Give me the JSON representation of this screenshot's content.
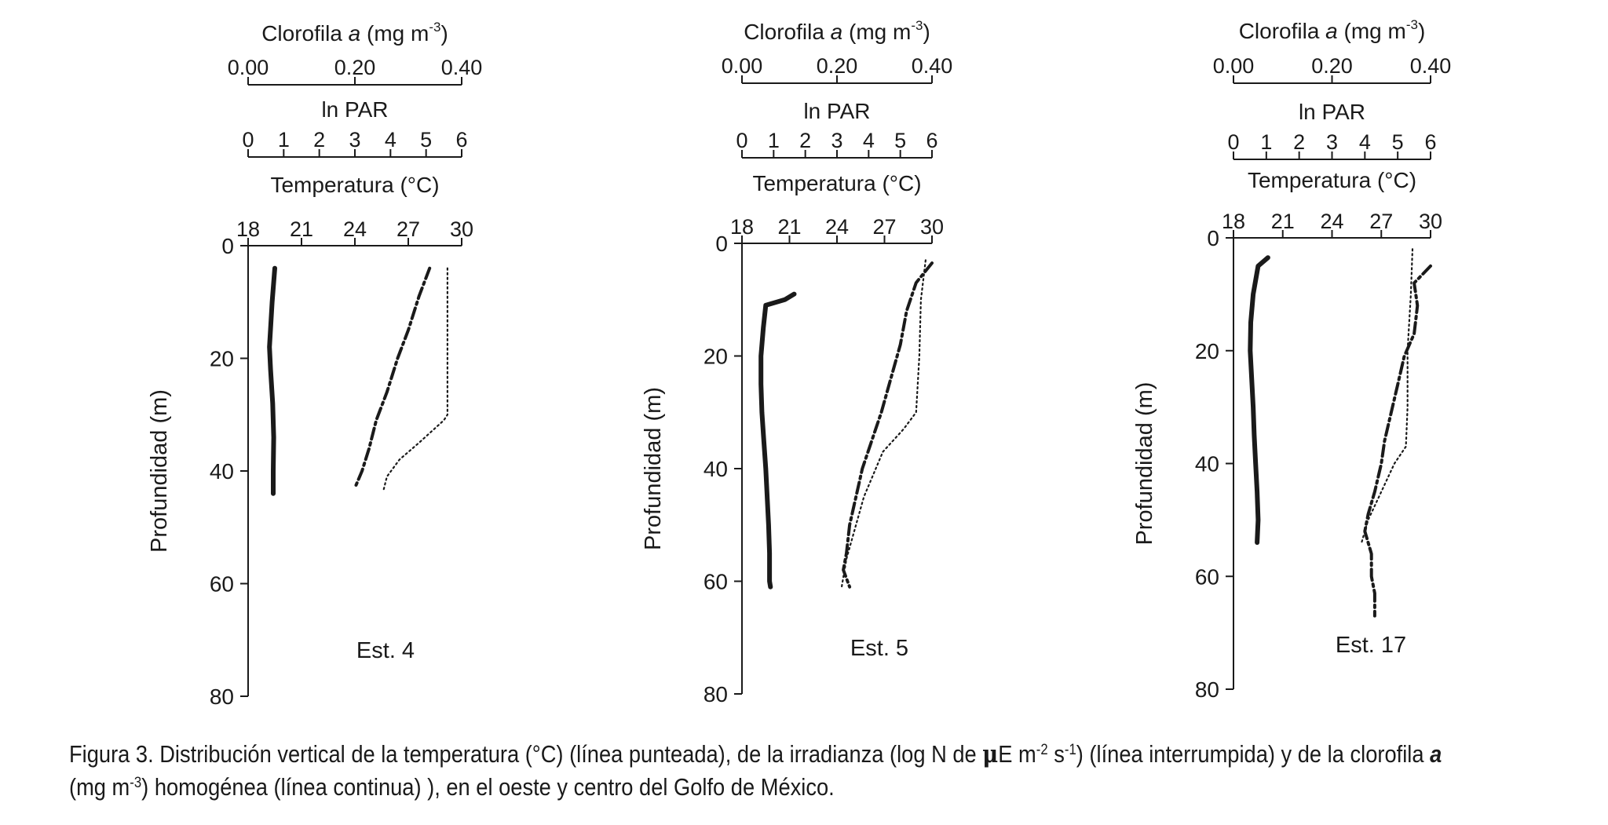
{
  "chart_data": [
    {
      "type": "line",
      "station_label": "Est. 4",
      "ylabel": "Profundidad (m)",
      "y_reversed": true,
      "ylim": [
        0,
        80
      ],
      "yticks": [
        "0",
        "20",
        "40",
        "60",
        "80"
      ],
      "axes": {
        "chl": {
          "label_main": "Clorofila ",
          "label_italic": "a",
          "label_unit": " (mg m",
          "label_exp": "-3",
          "label_close": ")",
          "range": [
            0,
            0.4
          ],
          "ticks": [
            "0.00",
            "0.20",
            "0.40"
          ]
        },
        "par": {
          "label": "ln  PAR",
          "range": [
            0,
            6
          ],
          "ticks": [
            "0",
            "1",
            "2",
            "3",
            "4",
            "5",
            "6"
          ]
        },
        "temp": {
          "label": "Temperatura  (°C)",
          "range": [
            18,
            30
          ],
          "ticks": [
            "18",
            "21",
            "24",
            "27",
            "30"
          ]
        }
      },
      "series": [
        {
          "style": "dotted",
          "x_axis": "temp",
          "points": [
            [
              29.2,
              4
            ],
            [
              29.2,
              30
            ],
            [
              29.0,
              31
            ],
            [
              27.6,
              35
            ],
            [
              26.5,
              38
            ],
            [
              25.8,
              41
            ],
            [
              25.6,
              43.5
            ]
          ]
        },
        {
          "style": "dashed",
          "x_axis": "par",
          "points": [
            [
              5.1,
              4
            ],
            [
              4.8,
              9
            ],
            [
              4.5,
              15
            ],
            [
              4.2,
              20
            ],
            [
              3.9,
              26
            ],
            [
              3.6,
              31
            ],
            [
              3.4,
              36
            ],
            [
              3.2,
              40
            ],
            [
              3.0,
              43
            ]
          ]
        },
        {
          "style": "solid",
          "x_axis": "chl",
          "points": [
            [
              0.05,
              4
            ],
            [
              0.045,
              10
            ],
            [
              0.04,
              18
            ],
            [
              0.042,
              22
            ],
            [
              0.046,
              28
            ],
            [
              0.048,
              34
            ],
            [
              0.047,
              40
            ],
            [
              0.047,
              44
            ]
          ]
        }
      ]
    },
    {
      "type": "line",
      "station_label": "Est. 5",
      "ylabel": "Profundidad (m)",
      "y_reversed": true,
      "ylim": [
        0,
        80
      ],
      "yticks": [
        "0",
        "20",
        "40",
        "60",
        "80"
      ],
      "axes": {
        "chl": {
          "label_main": "Clorofila ",
          "label_italic": "a",
          "label_unit": " (mg m",
          "label_exp": "-3",
          "label_close": ")",
          "range": [
            0,
            0.4
          ],
          "ticks": [
            "0.00",
            "0.20",
            "0.40"
          ]
        },
        "par": {
          "label": "ln  PAR",
          "range": [
            0,
            6
          ],
          "ticks": [
            "0",
            "1",
            "2",
            "3",
            "4",
            "5",
            "6"
          ]
        },
        "temp": {
          "label": "Temperatura  (°C)",
          "range": [
            18,
            30
          ],
          "ticks": [
            "18",
            "21",
            "24",
            "27",
            "30"
          ]
        }
      },
      "series": [
        {
          "style": "dotted",
          "x_axis": "temp",
          "points": [
            [
              29.6,
              3
            ],
            [
              29.3,
              10
            ],
            [
              29.2,
              20
            ],
            [
              29.0,
              30
            ],
            [
              28.2,
              33
            ],
            [
              26.9,
              37
            ],
            [
              25.7,
              45
            ],
            [
              25.2,
              50
            ],
            [
              24.6,
              56
            ],
            [
              24.3,
              61
            ]
          ]
        },
        {
          "style": "dashed",
          "x_axis": "par",
          "points": [
            [
              6.0,
              3.5
            ],
            [
              5.5,
              7
            ],
            [
              5.2,
              12
            ],
            [
              5.0,
              18
            ],
            [
              4.7,
              24
            ],
            [
              4.4,
              30
            ],
            [
              4.1,
              35
            ],
            [
              3.8,
              40
            ],
            [
              3.6,
              45
            ],
            [
              3.4,
              50
            ],
            [
              3.3,
              55
            ],
            [
              3.2,
              58
            ],
            [
              3.4,
              61
            ]
          ]
        },
        {
          "style": "solid",
          "x_axis": "chl",
          "points": [
            [
              0.11,
              9
            ],
            [
              0.09,
              10
            ],
            [
              0.05,
              11
            ],
            [
              0.045,
              15
            ],
            [
              0.04,
              20
            ],
            [
              0.04,
              25
            ],
            [
              0.042,
              30
            ],
            [
              0.046,
              35
            ],
            [
              0.05,
              40
            ],
            [
              0.053,
              45
            ],
            [
              0.056,
              50
            ],
            [
              0.058,
              55
            ],
            [
              0.058,
              60
            ],
            [
              0.06,
              61
            ]
          ]
        }
      ]
    },
    {
      "type": "line",
      "station_label": "Est. 17",
      "ylabel": "Profundidad (m)",
      "y_reversed": true,
      "ylim": [
        0,
        80
      ],
      "yticks": [
        "0",
        "20",
        "40",
        "60",
        "80"
      ],
      "axes": {
        "chl": {
          "label_main": "Clorofila ",
          "label_italic": "a",
          "label_unit": " (mg m",
          "label_exp": "-3",
          "label_close": ")",
          "range": [
            0,
            0.4
          ],
          "ticks": [
            "0.00",
            "0.20",
            "0.40"
          ]
        },
        "par": {
          "label": "ln PAR",
          "range": [
            0,
            6
          ],
          "ticks": [
            "0",
            "1",
            "2",
            "3",
            "4",
            "5",
            "6"
          ]
        },
        "temp": {
          "label": "Temperatura     (°C)",
          "range": [
            18,
            30
          ],
          "ticks": [
            "18",
            "21",
            "24",
            "27",
            "30"
          ]
        }
      },
      "series": [
        {
          "style": "dotted",
          "x_axis": "temp",
          "points": [
            [
              28.9,
              2
            ],
            [
              28.8,
              10
            ],
            [
              28.6,
              20
            ],
            [
              28.6,
              30
            ],
            [
              28.5,
              37
            ],
            [
              27.8,
              40
            ],
            [
              27.0,
              45
            ],
            [
              26.2,
              50
            ],
            [
              25.8,
              54
            ]
          ]
        },
        {
          "style": "dashed",
          "x_axis": "par",
          "points": [
            [
              6.0,
              5
            ],
            [
              5.5,
              8
            ],
            [
              5.6,
              12
            ],
            [
              5.5,
              17
            ],
            [
              5.2,
              21
            ],
            [
              5.0,
              26
            ],
            [
              4.8,
              31
            ],
            [
              4.6,
              36
            ],
            [
              4.5,
              40
            ],
            [
              4.3,
              45
            ],
            [
              4.1,
              49
            ],
            [
              4.0,
              52
            ],
            [
              4.2,
              56
            ],
            [
              4.2,
              60
            ],
            [
              4.3,
              63
            ],
            [
              4.3,
              67
            ]
          ]
        },
        {
          "style": "solid",
          "x_axis": "chl",
          "points": [
            [
              0.07,
              3.5
            ],
            [
              0.05,
              5
            ],
            [
              0.04,
              10
            ],
            [
              0.035,
              15
            ],
            [
              0.034,
              20
            ],
            [
              0.037,
              25
            ],
            [
              0.04,
              30
            ],
            [
              0.042,
              35
            ],
            [
              0.045,
              40
            ],
            [
              0.048,
              45
            ],
            [
              0.05,
              50
            ],
            [
              0.048,
              54
            ]
          ]
        }
      ]
    }
  ],
  "caption": {
    "part1": "Figura 3. Distribución vertical de la temperatura (°C) (línea punteada), de la irradianza (log N de ",
    "mu": "μ",
    "part2": "E m",
    "exp1": "-2",
    "part3": " s",
    "exp2": "-1",
    "part4": ") (línea interrumpida) y de la clorofila ",
    "italic_a": "a",
    "line2_part1": "(mg m",
    "line2_exp": "-3",
    "line2_part2": ") homogénea (línea continua) ), en el oeste y centro del Golfo de México."
  }
}
